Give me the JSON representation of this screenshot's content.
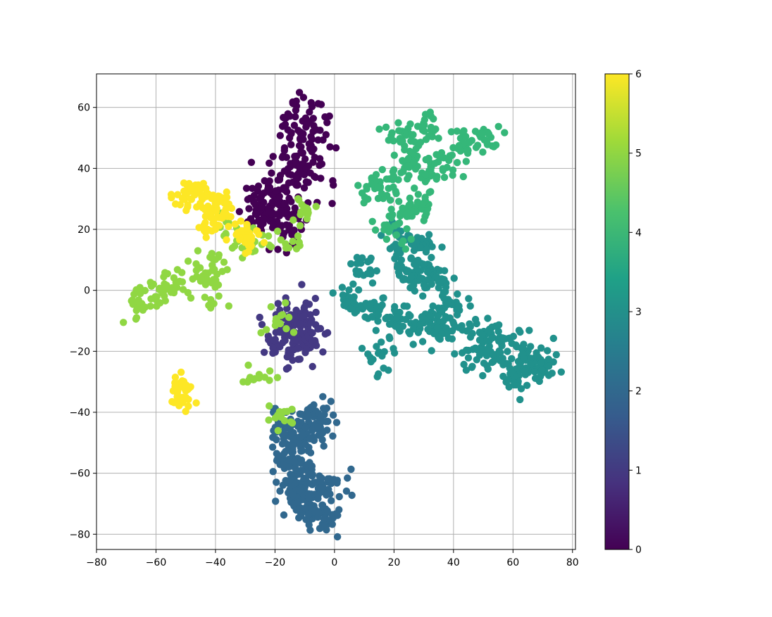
{
  "chart_data": {
    "type": "scatter",
    "title": "",
    "xlabel": "",
    "ylabel": "",
    "xlim": [
      -80,
      81
    ],
    "ylim": [
      -85,
      71
    ],
    "xticks": [
      -80,
      -60,
      -40,
      -20,
      0,
      20,
      40,
      60,
      80
    ],
    "yticks": [
      -80,
      -60,
      -40,
      -20,
      0,
      20,
      40,
      60
    ],
    "grid": true,
    "colorbar": {
      "colormap": "viridis",
      "range": [
        0,
        6
      ],
      "ticks": [
        0,
        1,
        2,
        3,
        4,
        5,
        6
      ],
      "placement": "right"
    },
    "colors": {
      "0": "#440154",
      "1": "#443983",
      "2": "#31688e",
      "3": "#21918c",
      "4": "#35b779",
      "5": "#90d743",
      "6": "#fde725"
    },
    "clusters": [
      {
        "label": 0,
        "n": 260,
        "points": [
          [
            -12,
            58
          ],
          [
            -12,
            50
          ],
          [
            -10,
            44
          ],
          [
            -14,
            40
          ],
          [
            -16,
            34
          ],
          [
            -20,
            28
          ],
          [
            -24,
            24
          ],
          [
            -28,
            27
          ],
          [
            -18,
            20
          ],
          [
            -12,
            22
          ],
          [
            -8,
            52
          ],
          [
            -6,
            38
          ],
          [
            -22,
            33
          ]
        ],
        "spread": [
          3.2,
          4.5
        ]
      },
      {
        "label": 1,
        "n": 150,
        "points": [
          [
            -15,
            -10
          ],
          [
            -12,
            -14
          ],
          [
            -16,
            -20
          ],
          [
            -10,
            -8
          ],
          [
            -18,
            -12
          ],
          [
            -8,
            -16
          ]
        ],
        "spread": [
          3,
          3.5
        ]
      },
      {
        "label": 2,
        "n": 330,
        "points": [
          [
            -16,
            -45
          ],
          [
            -14,
            -55
          ],
          [
            -12,
            -62
          ],
          [
            -8,
            -70
          ],
          [
            -4,
            -74
          ],
          [
            -10,
            -48
          ],
          [
            -6,
            -42
          ],
          [
            -14,
            -66
          ],
          [
            -2,
            -65
          ]
        ],
        "spread": [
          3,
          3.2
        ]
      },
      {
        "label": 3,
        "n": 520,
        "points": [
          [
            5,
            -3
          ],
          [
            12,
            -6
          ],
          [
            20,
            -10
          ],
          [
            28,
            -10
          ],
          [
            35,
            -12
          ],
          [
            44,
            -12
          ],
          [
            52,
            -16
          ],
          [
            58,
            -18
          ],
          [
            65,
            -22
          ],
          [
            70,
            -25
          ],
          [
            25,
            8
          ],
          [
            28,
            4
          ],
          [
            30,
            14
          ],
          [
            40,
            -6
          ],
          [
            35,
            2
          ],
          [
            22,
            16
          ],
          [
            15,
            -20
          ],
          [
            62,
            -28
          ],
          [
            48,
            -22
          ],
          [
            10,
            8
          ]
        ],
        "spread": [
          3,
          2.8
        ]
      },
      {
        "label": 4,
        "n": 260,
        "points": [
          [
            32,
            55
          ],
          [
            28,
            50
          ],
          [
            40,
            45
          ],
          [
            45,
            48
          ],
          [
            50,
            50
          ],
          [
            25,
            42
          ],
          [
            18,
            38
          ],
          [
            14,
            34
          ],
          [
            28,
            38
          ],
          [
            35,
            40
          ],
          [
            22,
            26
          ],
          [
            30,
            28
          ],
          [
            20,
            20
          ],
          [
            22,
            52
          ]
        ],
        "spread": [
          3,
          2.5
        ]
      },
      {
        "label": 5,
        "n": 200,
        "points": [
          [
            -66,
            -5
          ],
          [
            -62,
            -2
          ],
          [
            -56,
            0
          ],
          [
            -50,
            3
          ],
          [
            -45,
            7
          ],
          [
            -38,
            10
          ],
          [
            -30,
            14
          ],
          [
            -24,
            16
          ],
          [
            -68,
            -7
          ],
          [
            -58,
            2
          ],
          [
            -42,
            4
          ],
          [
            -34,
            20
          ],
          [
            -10,
            26
          ],
          [
            -20,
            -10
          ],
          [
            -25,
            -28
          ],
          [
            -18,
            -40
          ],
          [
            -40,
            -4
          ],
          [
            -14,
            14
          ]
        ],
        "spread": [
          2.8,
          2.2
        ]
      },
      {
        "label": 6,
        "n": 170,
        "points": [
          [
            -45,
            32
          ],
          [
            -44,
            28
          ],
          [
            -40,
            30
          ],
          [
            -36,
            26
          ],
          [
            -50,
            30
          ],
          [
            -32,
            18
          ],
          [
            -28,
            16
          ],
          [
            -42,
            22
          ],
          [
            -52,
            -32
          ],
          [
            -51,
            -35
          ]
        ],
        "spread": [
          2,
          2
        ]
      }
    ]
  }
}
